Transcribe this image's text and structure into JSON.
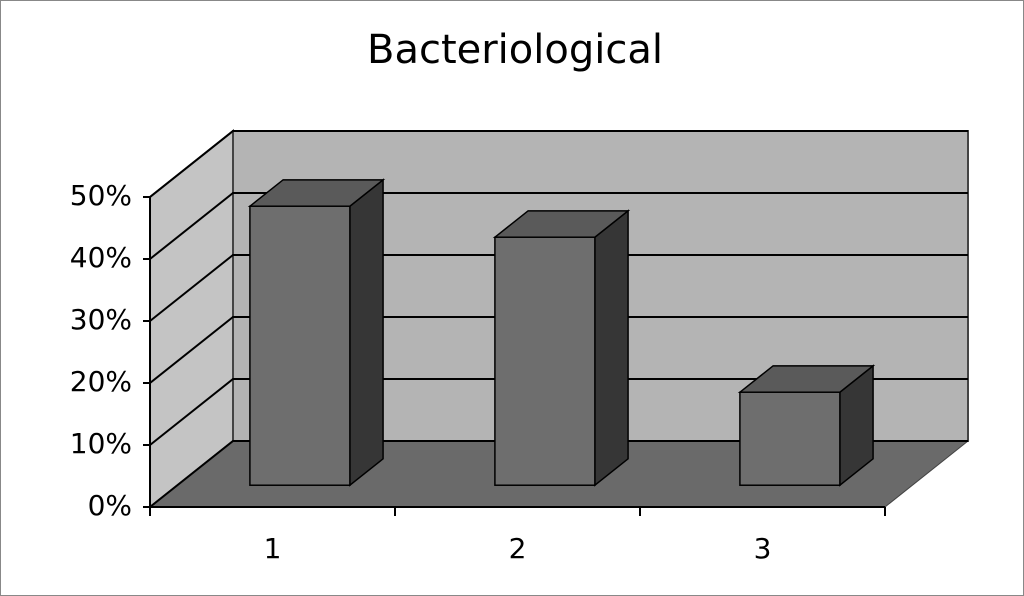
{
  "chart_data": {
    "type": "bar3d",
    "title": "Bacteriological",
    "categories": [
      "1",
      "2",
      "3"
    ],
    "values": [
      45,
      40,
      15
    ],
    "color": "#6e6e6e",
    "ylim": [
      0,
      50
    ],
    "yticks": [
      {
        "value": 0,
        "label": "0%"
      },
      {
        "value": 10,
        "label": "10%"
      },
      {
        "value": 20,
        "label": "20%"
      },
      {
        "value": 30,
        "label": "30%"
      },
      {
        "value": 40,
        "label": "40%"
      },
      {
        "value": 50,
        "label": "50%"
      }
    ],
    "grid": true
  }
}
